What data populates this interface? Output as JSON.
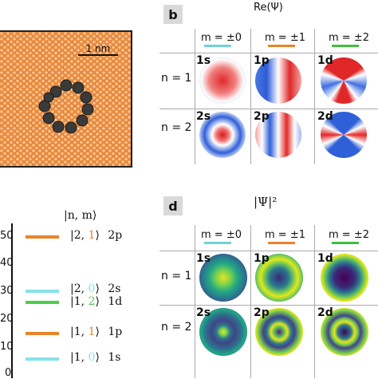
{
  "panel_b": {
    "letter": "b",
    "title": "Re(Ψ)",
    "columns": [
      {
        "label": "m = ±0",
        "color": "#6fd3d8"
      },
      {
        "label": "m = ±1",
        "color": "#e8842a"
      },
      {
        "label": "m = ±2",
        "color": "#3fbf3f"
      }
    ],
    "rows": [
      "n = 1",
      "n = 2"
    ],
    "cells": [
      "1s",
      "1p",
      "1d",
      "2s",
      "2p",
      "2d"
    ]
  },
  "panel_a": {
    "scale_label": "1 nm"
  },
  "panel_c": {
    "header": "|n, m⟩",
    "ticks": [
      "50",
      "40",
      "30",
      "20",
      "10",
      "0"
    ],
    "levels": [
      {
        "n": "2",
        "m": "1",
        "name": "2p",
        "color": "#e8842a"
      },
      {
        "n": "2",
        "m": "0",
        "name": "2s",
        "color": "#86e3e6"
      },
      {
        "n": "1",
        "m": "2",
        "name": "1d",
        "color": "#4ccd4c"
      },
      {
        "n": "1",
        "m": "1",
        "name": "1p",
        "color": "#e8842a"
      },
      {
        "n": "1",
        "m": "0",
        "name": "1s",
        "color": "#86e3e6"
      }
    ]
  },
  "panel_d": {
    "letter": "d",
    "title": "|Ψ|²",
    "columns": [
      {
        "label": "m = ±0",
        "color": "#6fd3d8"
      },
      {
        "label": "m = ±1",
        "color": "#e8842a"
      },
      {
        "label": "m = ±2",
        "color": "#3fbf3f"
      }
    ],
    "rows": [
      "n = 1",
      "n = 2"
    ],
    "cells": [
      "1s",
      "1p",
      "1d",
      "2s",
      "2p",
      "2d"
    ]
  }
}
